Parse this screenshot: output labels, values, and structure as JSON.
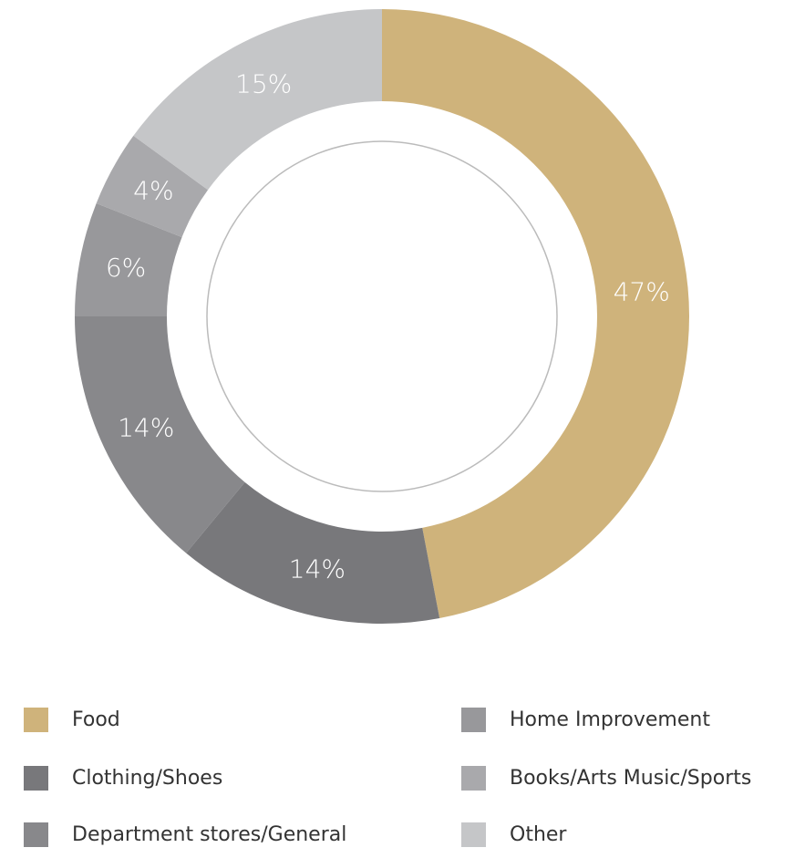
{
  "chart_data": {
    "type": "pie",
    "donut": true,
    "title": "",
    "categories": [
      "Food",
      "Clothing/Shoes",
      "Department stores/General",
      "Home Improvement",
      "Books/Arts Music/Sports",
      "Other"
    ],
    "values": [
      47,
      14,
      14,
      6,
      4,
      15
    ],
    "value_labels": [
      "47%",
      "14%",
      "14%",
      "6%",
      "4%",
      "15%"
    ],
    "colors": [
      "#cfb37b",
      "#78787b",
      "#88888b",
      "#98989b",
      "#a9a9ac",
      "#c5c6c8"
    ],
    "legend_placement": "bottom",
    "legend_columns": 2
  }
}
